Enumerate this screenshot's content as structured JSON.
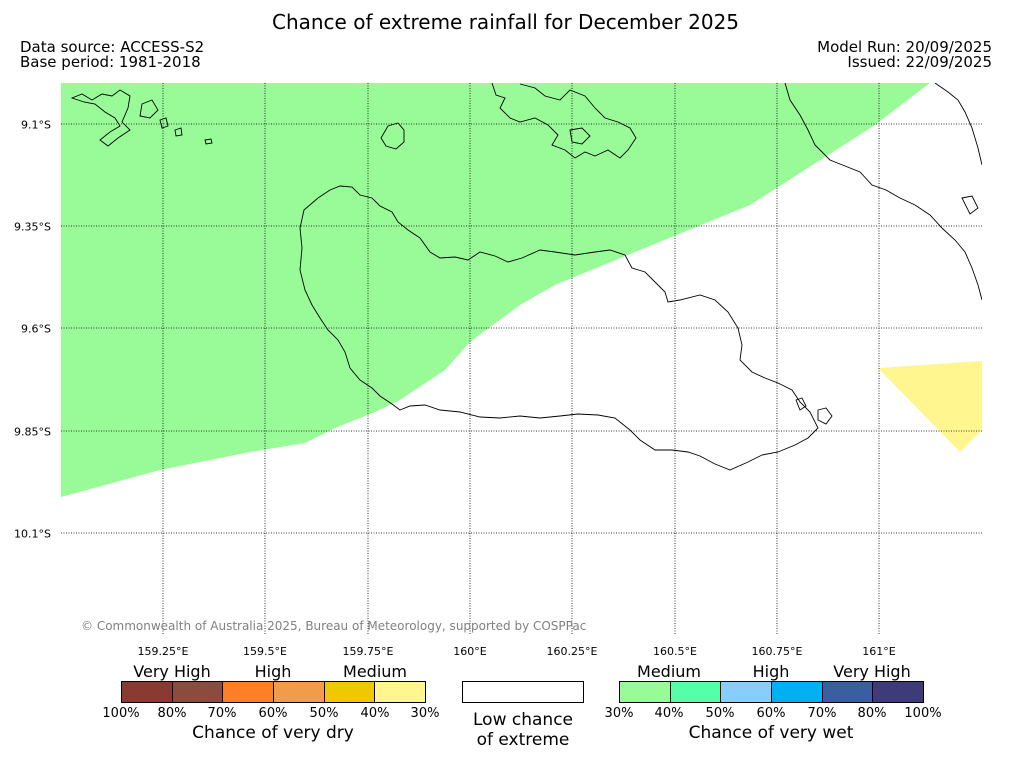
{
  "title": "Chance of extreme rainfall for December 2025",
  "data_source": "Data source: ACCESS-S2",
  "base_period": "Base period: 1981-2018",
  "model_run": "Model Run: 20/09/2025",
  "issued": "Issued: 22/09/2025",
  "copyright": "© Commonwealth of Australia 2025, Bureau of Meteorology, supported by COSPPac",
  "lon_labels": [
    "159.25°E",
    "159.5°E",
    "159.75°E",
    "160°E",
    "160.25°E",
    "160.5°E",
    "160.75°E",
    "161°E"
  ],
  "lat_labels": [
    "9.1°S",
    "9.35°S",
    "9.6°S",
    "9.85°S",
    "10.1°S"
  ],
  "legend": {
    "dry": {
      "title": "Chance of very dry",
      "categories": [
        "Very High",
        "High",
        "Medium"
      ],
      "ticks": [
        "100%",
        "80%",
        "70%",
        "60%",
        "50%",
        "40%",
        "30%"
      ],
      "colors": [
        "#8b3a32",
        "#8b4c3e",
        "#ff7f27",
        "#f09c4a",
        "#f0c800",
        "#fff68f"
      ]
    },
    "low": {
      "label_line1": "Low chance",
      "label_line2": "of extreme"
    },
    "wet": {
      "title": "Chance of very wet",
      "categories": [
        "Medium",
        "High",
        "Very High"
      ],
      "ticks": [
        "30%",
        "40%",
        "50%",
        "60%",
        "70%",
        "80%",
        "100%"
      ],
      "colors": [
        "#98fb98",
        "#55ffaa",
        "#87cefa",
        "#00b0f0",
        "#3a5fa0",
        "#3f3a78"
      ]
    }
  },
  "map_colors": {
    "wet_30_40": "#98fb98",
    "dry_30_40": "#fff68f"
  }
}
